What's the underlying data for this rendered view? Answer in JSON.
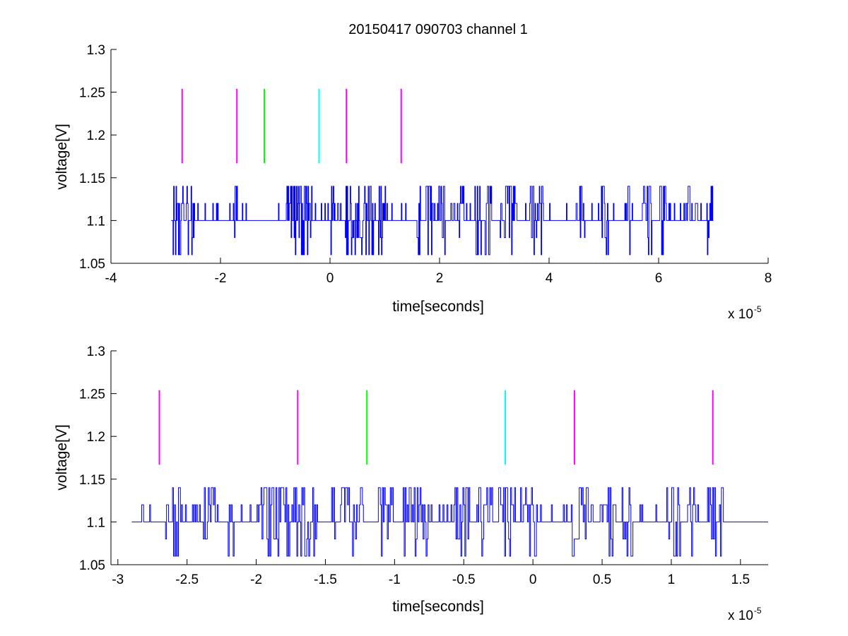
{
  "figure": {
    "title": "20150417 090703 channel 1",
    "colors": {
      "signal": "#0000ff",
      "magenta": "#ff00ff",
      "green": "#00ff00",
      "cyan": "#00ffff",
      "axis": "#000000"
    }
  },
  "chart_data": [
    {
      "type": "line",
      "title": "20150417 090703 channel 1",
      "xlabel": "time[seconds]",
      "ylabel": "voltage[V]",
      "x_multiplier_label": "x 10",
      "x_multiplier_exponent": "-5",
      "xlim": [
        -4,
        8
      ],
      "ylim": [
        1.05,
        1.3
      ],
      "xticks": [
        -4,
        -2,
        0,
        2,
        4,
        6,
        8
      ],
      "xtick_labels": [
        "-4",
        "-2",
        "0",
        "2",
        "4",
        "6",
        "8"
      ],
      "yticks": [
        1.05,
        1.1,
        1.15,
        1.2,
        1.25,
        1.3
      ],
      "ytick_labels": [
        "1.05",
        "1.1",
        "1.15",
        "1.2",
        "1.25",
        "1.3"
      ],
      "grid": false,
      "series": [
        {
          "signal_levels": [
            1.06,
            1.08,
            1.1,
            1.12,
            1.14
          ],
          "baseline": 1.1,
          "x_range": [
            -2.9,
            7.0
          ]
        }
      ],
      "markers": [
        {
          "x": -2.7,
          "color": "magenta",
          "y_range": [
            1.167,
            1.254
          ]
        },
        {
          "x": -1.7,
          "color": "magenta",
          "y_range": [
            1.167,
            1.254
          ]
        },
        {
          "x": -1.2,
          "color": "green",
          "y_range": [
            1.167,
            1.254
          ]
        },
        {
          "x": -0.2,
          "color": "cyan",
          "y_range": [
            1.167,
            1.254
          ]
        },
        {
          "x": 0.3,
          "color": "magenta",
          "y_range": [
            1.167,
            1.254
          ]
        },
        {
          "x": 1.3,
          "color": "magenta",
          "y_range": [
            1.167,
            1.254
          ]
        }
      ]
    },
    {
      "type": "line",
      "xlabel": "time[seconds]",
      "ylabel": "voltage[V]",
      "x_multiplier_label": "x 10",
      "x_multiplier_exponent": "-5",
      "xlim": [
        -3.05,
        1.7
      ],
      "ylim": [
        1.05,
        1.3
      ],
      "xticks": [
        -3,
        -2.5,
        -2,
        -1.5,
        -1,
        -0.5,
        0,
        0.5,
        1,
        1.5
      ],
      "xtick_labels": [
        "-3",
        "-2.5",
        "-2",
        "-1.5",
        "-1",
        "-0.5",
        "0",
        "0.5",
        "1",
        "1.5"
      ],
      "yticks": [
        1.05,
        1.1,
        1.15,
        1.2,
        1.25,
        1.3
      ],
      "ytick_labels": [
        "1.05",
        "1.1",
        "1.15",
        "1.2",
        "1.25",
        "1.3"
      ],
      "grid": false,
      "series": [
        {
          "signal_levels": [
            1.06,
            1.08,
            1.1,
            1.12,
            1.14
          ],
          "baseline": 1.1,
          "x_range": [
            -2.9,
            1.7
          ]
        }
      ],
      "markers": [
        {
          "x": -2.7,
          "color": "magenta",
          "y_range": [
            1.167,
            1.254
          ]
        },
        {
          "x": -1.7,
          "color": "magenta",
          "y_range": [
            1.167,
            1.254
          ]
        },
        {
          "x": -1.2,
          "color": "green",
          "y_range": [
            1.167,
            1.254
          ]
        },
        {
          "x": -0.2,
          "color": "cyan",
          "y_range": [
            1.167,
            1.254
          ]
        },
        {
          "x": 0.3,
          "color": "magenta",
          "y_range": [
            1.167,
            1.254
          ]
        },
        {
          "x": 1.3,
          "color": "magenta",
          "y_range": [
            1.167,
            1.254
          ]
        }
      ]
    }
  ]
}
